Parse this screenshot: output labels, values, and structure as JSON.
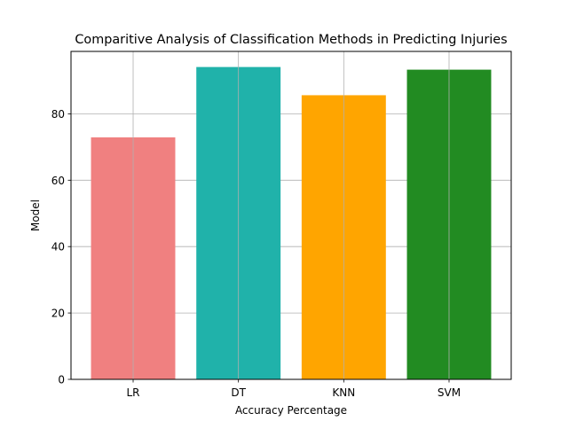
{
  "chart_data": {
    "type": "bar",
    "title": "Comparitive Analysis of Classification Methods in Predicting Injuries",
    "xlabel": "Accuracy Percentage",
    "ylabel": "Model",
    "categories": [
      "LR",
      "DT",
      "KNN",
      "SVM"
    ],
    "values": [
      72.9,
      94.1,
      85.6,
      93.3
    ],
    "colors": [
      "#f08080",
      "#20b2aa",
      "#ffa500",
      "#228b22"
    ],
    "ylim": [
      0,
      98.8
    ],
    "yticks": [
      0,
      20,
      40,
      60,
      80
    ],
    "grid": true,
    "legend": "none"
  }
}
